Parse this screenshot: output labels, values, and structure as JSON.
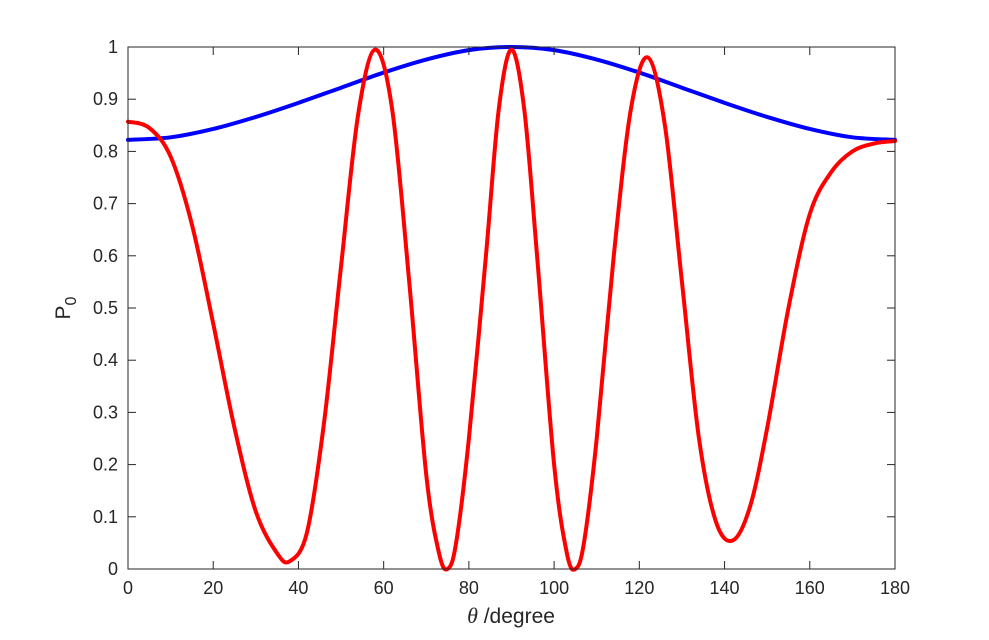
{
  "chart_data": {
    "type": "line",
    "xlabel_symbol": "θ",
    "xlabel_rest": " /degree",
    "ylabel_main": "P",
    "ylabel_sub": "0",
    "xlim": [
      0,
      180
    ],
    "ylim": [
      0,
      1
    ],
    "grid": false,
    "x_ticks": [
      "0",
      "20",
      "40",
      "60",
      "80",
      "100",
      "120",
      "140",
      "160",
      "180"
    ],
    "y_ticks": [
      "0",
      "0.1",
      "0.2",
      "0.3",
      "0.4",
      "0.5",
      "0.6",
      "0.7",
      "0.8",
      "0.9",
      "1"
    ],
    "series": [
      {
        "color": "#0000ff",
        "x": [
          0,
          10,
          20,
          30,
          40,
          50,
          60,
          70,
          80,
          90,
          100,
          110,
          120,
          130,
          140,
          150,
          160,
          170,
          180
        ],
        "y": [
          0.822,
          0.827,
          0.843,
          0.866,
          0.893,
          0.922,
          0.951,
          0.976,
          0.994,
          1.0,
          0.994,
          0.976,
          0.951,
          0.922,
          0.893,
          0.866,
          0.843,
          0.827,
          0.822
        ]
      },
      {
        "color": "#ff0000",
        "x": [
          0,
          5,
          10,
          15,
          20,
          25,
          30,
          35,
          38,
          42,
          46,
          50,
          54,
          58,
          62,
          66,
          70,
          73,
          75,
          77,
          80,
          84,
          87,
          90,
          93,
          96,
          100,
          103,
          105,
          107,
          110,
          114,
          118,
          122,
          126,
          130,
          134,
          138,
          142,
          146,
          150,
          155,
          160,
          165,
          170,
          175,
          180
        ],
        "y": [
          0.857,
          0.845,
          0.79,
          0.66,
          0.47,
          0.27,
          0.11,
          0.03,
          0.015,
          0.07,
          0.28,
          0.58,
          0.87,
          0.995,
          0.88,
          0.55,
          0.18,
          0.03,
          0.0,
          0.05,
          0.25,
          0.6,
          0.88,
          0.995,
          0.88,
          0.6,
          0.2,
          0.03,
          0.0,
          0.05,
          0.25,
          0.6,
          0.88,
          0.98,
          0.85,
          0.55,
          0.25,
          0.09,
          0.055,
          0.12,
          0.27,
          0.5,
          0.68,
          0.76,
          0.8,
          0.815,
          0.82
        ]
      }
    ]
  }
}
